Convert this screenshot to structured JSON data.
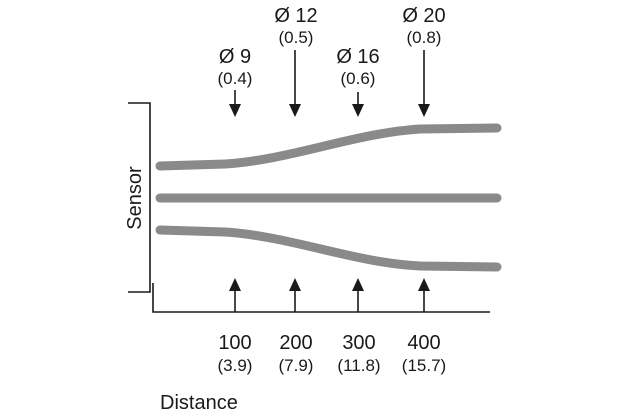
{
  "diagram": {
    "sensor_label": "Sensor",
    "distance_label": "Distance",
    "top_labels": [
      {
        "diameter": "Ø 9",
        "sub": "(0.4)"
      },
      {
        "diameter": "Ø 12",
        "sub": "(0.5)"
      },
      {
        "diameter": "Ø 16",
        "sub": "(0.6)"
      },
      {
        "diameter": "Ø 20",
        "sub": "(0.8)"
      }
    ],
    "bottom_labels": [
      {
        "distance": "100",
        "sub": "(3.9)"
      },
      {
        "distance": "200",
        "sub": "(7.9)"
      },
      {
        "distance": "300",
        "sub": "(11.8)"
      },
      {
        "distance": "400",
        "sub": "(15.7)"
      }
    ],
    "colors": {
      "beam": "#8a8a8a",
      "ink": "#1a1a1a"
    }
  }
}
